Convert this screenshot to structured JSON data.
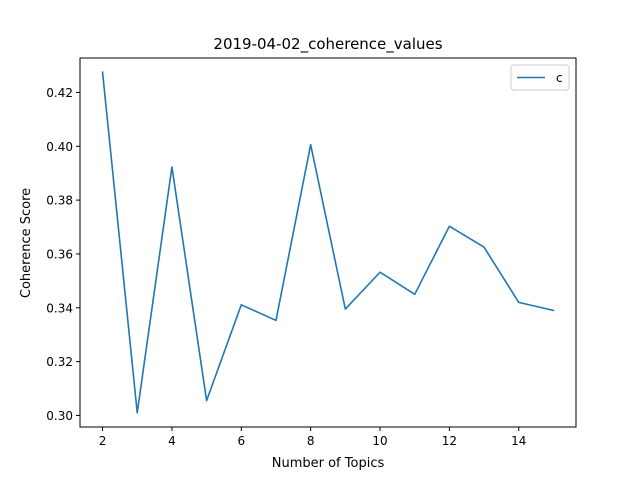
{
  "chart_data": {
    "type": "line",
    "title": "2019-04-02_coherence_values",
    "xlabel": "Number of Topics",
    "ylabel": "Coherence Score",
    "x": [
      2,
      3,
      4,
      5,
      6,
      7,
      8,
      9,
      10,
      11,
      12,
      13,
      14,
      15
    ],
    "series": [
      {
        "name": "c",
        "color": "#1f77b4",
        "values": [
          0.4275,
          0.301,
          0.3923,
          0.3055,
          0.3411,
          0.3353,
          0.4006,
          0.3395,
          0.3532,
          0.345,
          0.3703,
          0.3625,
          0.342,
          0.339
        ]
      }
    ],
    "xlim": [
      1.35,
      15.65
    ],
    "ylim": [
      0.2957,
      0.4328
    ],
    "xticks": [
      2,
      4,
      6,
      8,
      10,
      12,
      14
    ],
    "yticks": [
      0.3,
      0.32,
      0.34,
      0.36,
      0.38,
      0.4,
      0.42
    ],
    "xtick_labels": [
      "2",
      "4",
      "6",
      "8",
      "10",
      "12",
      "14"
    ],
    "ytick_labels": [
      "0.30",
      "0.32",
      "0.34",
      "0.36",
      "0.38",
      "0.40",
      "0.42"
    ],
    "grid": false,
    "legend_position": "top-right"
  }
}
